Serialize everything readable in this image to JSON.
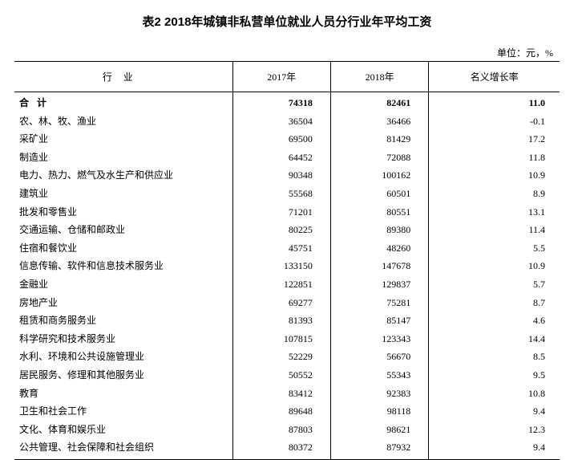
{
  "title": "表2  2018年城镇非私营单位就业人员分行业年平均工资",
  "unit": "单位：元，%",
  "headers": {
    "industry": "行业",
    "y2017": "2017年",
    "y2018": "2018年",
    "growth": "名义增长率"
  },
  "total": {
    "label": "合计",
    "y2017": "74318",
    "y2018": "82461",
    "growth": "11.0"
  },
  "rows": [
    {
      "label": "农、林、牧、渔业",
      "y2017": "36504",
      "y2018": "36466",
      "growth": "-0.1"
    },
    {
      "label": "采矿业",
      "y2017": "69500",
      "y2018": "81429",
      "growth": "17.2"
    },
    {
      "label": "制造业",
      "y2017": "64452",
      "y2018": "72088",
      "growth": "11.8"
    },
    {
      "label": "电力、热力、燃气及水生产和供应业",
      "y2017": "90348",
      "y2018": "100162",
      "growth": "10.9"
    },
    {
      "label": "建筑业",
      "y2017": "55568",
      "y2018": "60501",
      "growth": "8.9"
    },
    {
      "label": "批发和零售业",
      "y2017": "71201",
      "y2018": "80551",
      "growth": "13.1"
    },
    {
      "label": "交通运输、仓储和邮政业",
      "y2017": "80225",
      "y2018": "89380",
      "growth": "11.4"
    },
    {
      "label": "住宿和餐饮业",
      "y2017": "45751",
      "y2018": "48260",
      "growth": "5.5"
    },
    {
      "label": "信息传输、软件和信息技术服务业",
      "y2017": "133150",
      "y2018": "147678",
      "growth": "10.9"
    },
    {
      "label": "金融业",
      "y2017": "122851",
      "y2018": "129837",
      "growth": "5.7"
    },
    {
      "label": "房地产业",
      "y2017": "69277",
      "y2018": "75281",
      "growth": "8.7"
    },
    {
      "label": "租赁和商务服务业",
      "y2017": "81393",
      "y2018": "85147",
      "growth": "4.6"
    },
    {
      "label": "科学研究和技术服务业",
      "y2017": "107815",
      "y2018": "123343",
      "growth": "14.4"
    },
    {
      "label": "水利、环境和公共设施管理业",
      "y2017": "52229",
      "y2018": "56670",
      "growth": "8.5"
    },
    {
      "label": "居民服务、修理和其他服务业",
      "y2017": "50552",
      "y2018": "55343",
      "growth": "9.5"
    },
    {
      "label": "教育",
      "y2017": "83412",
      "y2018": "92383",
      "growth": "10.8"
    },
    {
      "label": "卫生和社会工作",
      "y2017": "89648",
      "y2018": "98118",
      "growth": "9.4"
    },
    {
      "label": "文化、体育和娱乐业",
      "y2017": "87803",
      "y2018": "98621",
      "growth": "12.3"
    },
    {
      "label": "公共管理、社会保障和社会组织",
      "y2017": "80372",
      "y2018": "87932",
      "growth": "9.4"
    }
  ]
}
